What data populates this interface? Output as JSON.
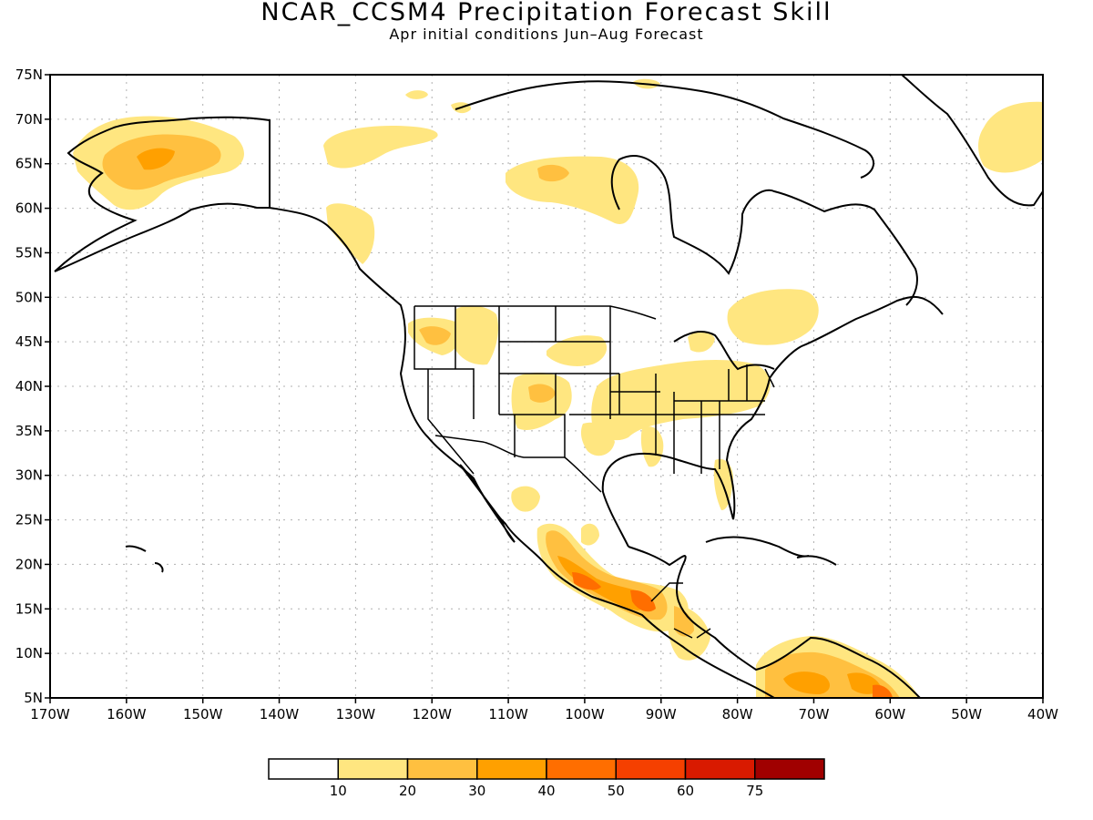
{
  "title": "NCAR_CCSM4 Precipitation Forecast Skill",
  "subtitle": "Apr initial conditions  Jun–Aug Forecast",
  "map": {
    "lon_range": [
      -170,
      -40
    ],
    "lat_range": [
      5,
      75
    ],
    "lat_ticks": [
      "75N",
      "70N",
      "65N",
      "60N",
      "55N",
      "50N",
      "45N",
      "40N",
      "35N",
      "30N",
      "25N",
      "20N",
      "15N",
      "10N",
      "5N"
    ],
    "lon_ticks": [
      "170W",
      "160W",
      "150W",
      "140W",
      "130W",
      "120W",
      "110W",
      "100W",
      "90W",
      "80W",
      "70W",
      "60W",
      "50W",
      "40W"
    ],
    "grid": true
  },
  "colorbar": {
    "labels": [
      "10",
      "20",
      "30",
      "40",
      "50",
      "60",
      "75"
    ],
    "colors": [
      "#ffffff",
      "#ffe680",
      "#ffc040",
      "#ffa000",
      "#ff6e00",
      "#f54000",
      "#d91a00",
      "#a00000"
    ]
  }
}
